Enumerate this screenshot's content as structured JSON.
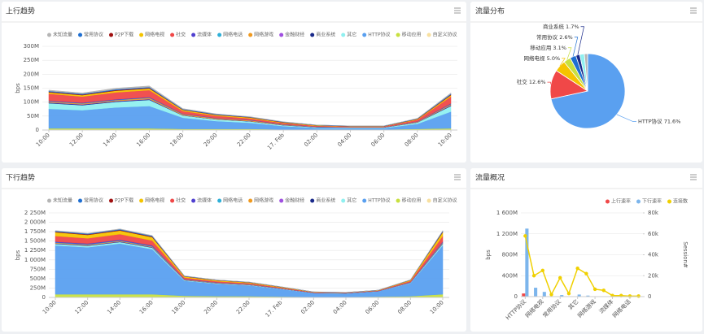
{
  "chart_data": [
    {
      "type": "stacked-area",
      "title": "上行趋势",
      "y_label": "bps",
      "categories": [
        "10:00",
        "12:00",
        "14:00",
        "16:00",
        "18:00",
        "20:00",
        "22:00",
        "17. Feb",
        "02:00",
        "04:00",
        "06:00",
        "08:00",
        "10:00"
      ],
      "ylim": [
        0,
        300
      ],
      "yticks": [
        0,
        {
          "value": 50,
          "label": "50M"
        },
        {
          "value": 100,
          "label": "100M"
        },
        {
          "value": 150,
          "label": "150M"
        },
        {
          "value": 200,
          "label": "200M"
        },
        {
          "value": 250,
          "label": "250M"
        },
        {
          "value": 300,
          "label": "300M"
        }
      ],
      "grid": true,
      "series": [
        {
          "name": "未知流量",
          "color": "#b5b5b5",
          "values": [
            3,
            3,
            4,
            4,
            2,
            1,
            1,
            1,
            0,
            0,
            0,
            1,
            3
          ]
        },
        {
          "name": "常用协议",
          "color": "#1f6fd1",
          "values": [
            3,
            3,
            3,
            3,
            2,
            2,
            1,
            1,
            1,
            1,
            1,
            1,
            3
          ]
        },
        {
          "name": "P2P下载",
          "color": "#a01010",
          "values": [
            2,
            2,
            2,
            2,
            1,
            1,
            1,
            1,
            0,
            0,
            0,
            1,
            2
          ]
        },
        {
          "name": "网络电视",
          "color": "#f5c400",
          "values": [
            5,
            5,
            6,
            6,
            4,
            3,
            3,
            2,
            2,
            1,
            1,
            2,
            5
          ]
        },
        {
          "name": "社交",
          "color": "#f04848",
          "values": [
            25,
            22,
            25,
            25,
            10,
            8,
            6,
            4,
            3,
            2,
            2,
            6,
            25
          ]
        },
        {
          "name": "流媒体",
          "color": "#5040d0",
          "values": [
            2,
            2,
            2,
            2,
            1,
            1,
            1,
            1,
            0,
            0,
            0,
            1,
            2
          ]
        },
        {
          "name": "网络电话",
          "color": "#30b0d8",
          "values": [
            1,
            1,
            1,
            1,
            1,
            0,
            0,
            0,
            0,
            0,
            0,
            0,
            1
          ]
        },
        {
          "name": "网络游戏",
          "color": "#f09a20",
          "values": [
            3,
            3,
            3,
            4,
            3,
            3,
            3,
            2,
            1,
            1,
            1,
            2,
            3
          ]
        },
        {
          "name": "金融财经",
          "color": "#a050e0",
          "values": [
            1,
            1,
            1,
            1,
            0,
            0,
            0,
            0,
            0,
            0,
            0,
            0,
            1
          ]
        },
        {
          "name": "商业系统",
          "color": "#1a2a8a",
          "values": [
            2,
            2,
            2,
            2,
            1,
            1,
            1,
            1,
            1,
            1,
            1,
            1,
            2
          ]
        },
        {
          "name": "其它",
          "color": "#90f0f0",
          "values": [
            20,
            18,
            20,
            22,
            8,
            6,
            5,
            3,
            2,
            2,
            2,
            5,
            20
          ]
        },
        {
          "name": "HTTP协议",
          "color": "#5aa0f0",
          "values": [
            70,
            65,
            75,
            80,
            40,
            28,
            22,
            12,
            6,
            5,
            5,
            18,
            60
          ]
        },
        {
          "name": "移动应用",
          "color": "#c8e040",
          "values": [
            5,
            5,
            5,
            5,
            3,
            3,
            3,
            2,
            2,
            2,
            2,
            3,
            5
          ]
        },
        {
          "name": "自定义协议",
          "color": "#f8e0a0",
          "values": [
            1,
            1,
            1,
            1,
            1,
            1,
            1,
            0,
            0,
            0,
            0,
            1,
            1
          ]
        }
      ]
    },
    {
      "type": "pie",
      "title": "流量分布",
      "labels": [
        "HTTP协议",
        "社交",
        "网络电视",
        "移动应用",
        "常用协议",
        "商业系统",
        null,
        null
      ],
      "values": [
        71.6,
        12.6,
        5.0,
        3.1,
        2.6,
        1.7,
        2.0,
        1.4
      ],
      "value_labels": [
        "71.6%",
        "12.6%",
        "5.0%",
        "3.1%",
        "2.6%",
        "1.7%",
        null,
        null
      ],
      "colors": [
        "#5aa0f0",
        "#f04848",
        "#f5c400",
        "#c8e040",
        "#1f6fd1",
        "#1a2a8a",
        "#90f0f0",
        "#b5b5b5"
      ]
    },
    {
      "type": "stacked-area",
      "title": "下行趋势",
      "y_label": "bps",
      "categories": [
        "10:00",
        "12:00",
        "14:00",
        "16:00",
        "18:00",
        "20:00",
        "22:00",
        "17. Feb",
        "02:00",
        "04:00",
        "06:00",
        "08:00",
        "10:00"
      ],
      "ylim": [
        0,
        2250
      ],
      "yticks": [
        0,
        {
          "value": 250,
          "label": "250M"
        },
        {
          "value": 500,
          "label": "500M"
        },
        {
          "value": 750,
          "label": "750M"
        },
        {
          "value": 1000,
          "label": "1 000M"
        },
        {
          "value": 1250,
          "label": "1 250M"
        },
        {
          "value": 1500,
          "label": "1 500M"
        },
        {
          "value": 1750,
          "label": "1 750M"
        },
        {
          "value": 2000,
          "label": "2 000M"
        },
        {
          "value": 2250,
          "label": "2 250M"
        }
      ],
      "grid": true,
      "series": [
        {
          "name": "未知流量",
          "color": "#b5b5b5",
          "values": [
            10,
            10,
            10,
            10,
            5,
            3,
            3,
            2,
            1,
            1,
            1,
            3,
            10
          ]
        },
        {
          "name": "常用协议",
          "color": "#1f6fd1",
          "values": [
            20,
            20,
            20,
            20,
            8,
            6,
            5,
            3,
            2,
            2,
            2,
            5,
            20
          ]
        },
        {
          "name": "P2P下载",
          "color": "#a01010",
          "values": [
            15,
            15,
            15,
            15,
            5,
            4,
            4,
            3,
            1,
            1,
            1,
            3,
            15
          ]
        },
        {
          "name": "网络电视",
          "color": "#f5c400",
          "values": [
            100,
            90,
            95,
            90,
            30,
            25,
            20,
            15,
            8,
            6,
            8,
            20,
            100
          ]
        },
        {
          "name": "社交",
          "color": "#f04848",
          "values": [
            150,
            140,
            150,
            130,
            40,
            30,
            25,
            18,
            10,
            8,
            10,
            30,
            150
          ]
        },
        {
          "name": "流媒体",
          "color": "#5040d0",
          "values": [
            20,
            20,
            20,
            20,
            8,
            6,
            5,
            3,
            2,
            2,
            2,
            5,
            20
          ]
        },
        {
          "name": "网络电话",
          "color": "#30b0d8",
          "values": [
            10,
            10,
            10,
            10,
            5,
            3,
            3,
            2,
            1,
            1,
            1,
            3,
            10
          ]
        },
        {
          "name": "网络游戏",
          "color": "#f09a20",
          "values": [
            15,
            15,
            15,
            15,
            10,
            10,
            10,
            6,
            3,
            3,
            3,
            6,
            15
          ]
        },
        {
          "name": "金融财经",
          "color": "#a050e0",
          "values": [
            5,
            5,
            5,
            5,
            2,
            2,
            2,
            1,
            1,
            1,
            1,
            2,
            5
          ]
        },
        {
          "name": "商业系统",
          "color": "#1a2a8a",
          "values": [
            10,
            10,
            10,
            10,
            5,
            4,
            3,
            2,
            1,
            1,
            1,
            3,
            10
          ]
        },
        {
          "name": "其它",
          "color": "#90f0f0",
          "values": [
            40,
            40,
            40,
            40,
            15,
            12,
            10,
            8,
            4,
            4,
            4,
            10,
            40
          ]
        },
        {
          "name": "HTTP协议",
          "color": "#5aa0f0",
          "values": [
            1300,
            1250,
            1350,
            1200,
            400,
            330,
            290,
            200,
            100,
            90,
            140,
            350,
            1300
          ]
        },
        {
          "name": "移动应用",
          "color": "#c8e040",
          "values": [
            80,
            80,
            80,
            80,
            40,
            30,
            30,
            20,
            15,
            15,
            20,
            30,
            80
          ]
        },
        {
          "name": "自定义协议",
          "color": "#f8e0a0",
          "values": [
            5,
            5,
            5,
            5,
            3,
            3,
            2,
            2,
            1,
            1,
            1,
            2,
            5
          ]
        }
      ]
    },
    {
      "type": "bar-line",
      "title": "流量概况",
      "y_label": "bps",
      "y2_label": "Session#",
      "categories": [
        "HTTP协议",
        null,
        "网络电视",
        null,
        "常用协议",
        null,
        "其它",
        null,
        "网络游戏",
        null,
        "流媒体",
        null,
        "网络电话",
        null
      ],
      "ylim": [
        0,
        1600
      ],
      "yticks": [
        0,
        {
          "value": 400,
          "label": "400M"
        },
        {
          "value": 800,
          "label": "800M"
        },
        {
          "value": 1200,
          "label": "1 200M"
        },
        {
          "value": 1600,
          "label": "1 600M"
        }
      ],
      "y2lim": [
        0,
        80
      ],
      "y2ticks": [
        0,
        {
          "value": 20,
          "label": "20k"
        },
        {
          "value": 40,
          "label": "40k"
        },
        {
          "value": 60,
          "label": "60k"
        },
        {
          "value": 80,
          "label": "80k"
        }
      ],
      "grid": true,
      "series": [
        {
          "name": "上行速率",
          "color": "#f04848",
          "kind": "bar",
          "values": [
            60,
            5,
            3,
            0,
            1,
            0,
            2,
            1,
            0,
            0,
            0,
            0,
            0,
            0
          ]
        },
        {
          "name": "下行速率",
          "color": "#7cb5ec",
          "kind": "bar",
          "values": [
            1300,
            170,
            90,
            5,
            30,
            5,
            40,
            20,
            5,
            5,
            2,
            2,
            1,
            1
          ]
        },
        {
          "name": "连接数",
          "color": "#f0d000",
          "kind": "line",
          "axis": "y2",
          "values": [
            58,
            20,
            25,
            2,
            18,
            3,
            27,
            22,
            7,
            6,
            1,
            1,
            0.5,
            0.5
          ]
        }
      ]
    }
  ]
}
